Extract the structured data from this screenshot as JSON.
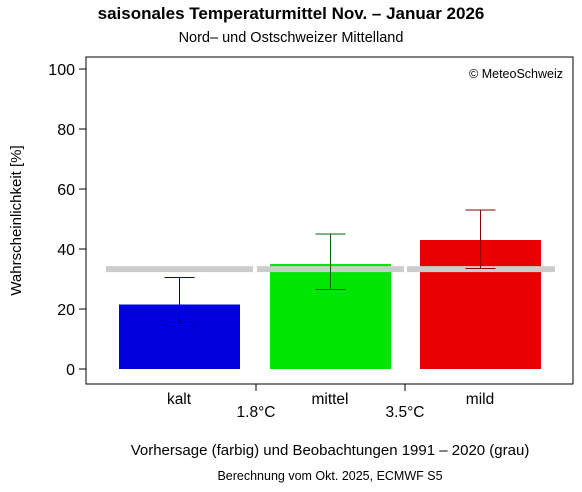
{
  "chart_data": {
    "type": "bar",
    "title": "saisonales Temperaturmittel Nov. – Januar 2026",
    "subtitle": "Nord– und Ostschweizer Mittelland",
    "ylabel": "Wahrscheinlichkeit [%]",
    "ylim": [
      0,
      100
    ],
    "yticks": [
      0,
      20,
      40,
      60,
      80,
      100
    ],
    "categories": [
      "kalt",
      "mittel",
      "mild"
    ],
    "thresholds": [
      "1.8°C",
      "3.5°C"
    ],
    "series": [
      {
        "name": "Vorhersage (farbig)",
        "values": [
          21.5,
          35,
          43
        ],
        "error_low": [
          14.5,
          26.5,
          33.5
        ],
        "error_high": [
          30.5,
          45,
          53
        ],
        "colors": [
          "#0000dd",
          "#00e600",
          "#e60000"
        ],
        "error_colors": [
          "#00008b",
          "#006400",
          "#8b0000"
        ]
      },
      {
        "name": "Beobachtungen 1991 – 2020 (grau)",
        "values": [
          33.3,
          33.3,
          33.3
        ],
        "color": "#cccccc"
      }
    ],
    "annotation": "© MeteoSchweiz",
    "xlabel": "Vorhersage (farbig) und Beobachtungen 1991 – 2020 (grau)",
    "footnote": "Berechnung vom Okt. 2025, ECMWF S5"
  }
}
